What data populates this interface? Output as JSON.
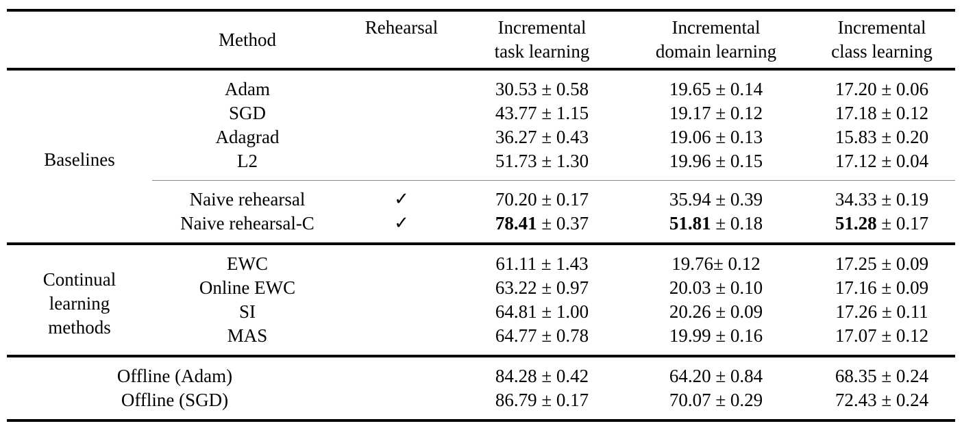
{
  "colors": {
    "background": "#ffffff",
    "text": "#000000",
    "thick_rule": "#000000",
    "thin_rule": "#8a8a8a"
  },
  "table": {
    "checkmark": "✓",
    "header": {
      "group": "",
      "method": "Method",
      "rehearsal": "Rehearsal",
      "task": {
        "l1": "Incremental",
        "l2": "task learning"
      },
      "domain": {
        "l1": "Incremental",
        "l2": "domain learning"
      },
      "cls": {
        "l1": "Incremental",
        "l2": "class learning"
      }
    },
    "groups": [
      {
        "label": "Baselines",
        "rows": [
          {
            "method": "Adam",
            "rehearsal": false,
            "task": {
              "m": "30.53",
              "r": " ± 0.58"
            },
            "domain": {
              "m": "19.65",
              "r": " ± 0.14"
            },
            "cls": {
              "m": "17.20",
              "r": " ± 0.06"
            }
          },
          {
            "method": "SGD",
            "rehearsal": false,
            "task": {
              "m": "43.77",
              "r": " ± 1.15"
            },
            "domain": {
              "m": "19.17",
              "r": " ± 0.12"
            },
            "cls": {
              "m": "17.18",
              "r": " ± 0.12"
            }
          },
          {
            "method": "Adagrad",
            "rehearsal": false,
            "task": {
              "m": "36.27",
              "r": " ± 0.43"
            },
            "domain": {
              "m": "19.06",
              "r": " ± 0.13"
            },
            "cls": {
              "m": "15.83",
              "r": " ± 0.20"
            }
          },
          {
            "method": "L2",
            "rehearsal": false,
            "task": {
              "m": "51.73",
              "r": " ± 1.30"
            },
            "domain": {
              "m": "19.96",
              "r": " ± 0.15"
            },
            "cls": {
              "m": "17.12",
              "r": " ± 0.04"
            }
          },
          {
            "method": "Naive rehearsal",
            "rehearsal": true,
            "task": {
              "m": "70.20",
              "r": " ± 0.17"
            },
            "domain": {
              "m": "35.94",
              "r": " ± 0.39"
            },
            "cls": {
              "m": "34.33",
              "r": " ± 0.19"
            }
          },
          {
            "method": "Naive rehearsal-C",
            "rehearsal": true,
            "bold_main": true,
            "task": {
              "m": "78.41",
              "r": " ± 0.37"
            },
            "domain": {
              "m": "51.81",
              "r": " ± 0.18"
            },
            "cls": {
              "m": "51.28",
              "r": " ± 0.17"
            }
          }
        ]
      },
      {
        "label_lines": [
          "Continual",
          "learning",
          "methods"
        ],
        "rows": [
          {
            "method": "EWC",
            "rehearsal": false,
            "task": {
              "m": "61.11",
              "r": " ± 1.43"
            },
            "domain": {
              "m": "19.76",
              "r": "± 0.12"
            },
            "cls": {
              "m": "17.25",
              "r": " ± 0.09"
            }
          },
          {
            "method": "Online EWC",
            "rehearsal": false,
            "task": {
              "m": "63.22",
              "r": " ± 0.97"
            },
            "domain": {
              "m": "20.03",
              "r": " ± 0.10"
            },
            "cls": {
              "m": "17.16",
              "r": " ± 0.09"
            }
          },
          {
            "method": "SI",
            "rehearsal": false,
            "task": {
              "m": "64.81",
              "r": " ± 1.00"
            },
            "domain": {
              "m": "20.26",
              "r": " ± 0.09"
            },
            "cls": {
              "m": "17.26",
              "r": " ± 0.11"
            }
          },
          {
            "method": "MAS",
            "rehearsal": false,
            "task": {
              "m": "64.77",
              "r": " ± 0.78"
            },
            "domain": {
              "m": "19.99",
              "r": " ± 0.16"
            },
            "cls": {
              "m": "17.07",
              "r": " ± 0.12"
            }
          }
        ]
      },
      {
        "rows": [
          {
            "method": "Offline (Adam)",
            "rehearsal": false,
            "task": {
              "m": "84.28",
              "r": " ± 0.42"
            },
            "domain": {
              "m": "64.20",
              "r": " ± 0.84"
            },
            "cls": {
              "m": "68.35",
              "r": " ± 0.24"
            }
          },
          {
            "method": "Offline (SGD)",
            "rehearsal": false,
            "task": {
              "m": "86.79",
              "r": " ± 0.17"
            },
            "domain": {
              "m": "70.07",
              "r": " ± 0.29"
            },
            "cls": {
              "m": "72.43",
              "r": " ± 0.24"
            }
          }
        ]
      }
    ]
  }
}
